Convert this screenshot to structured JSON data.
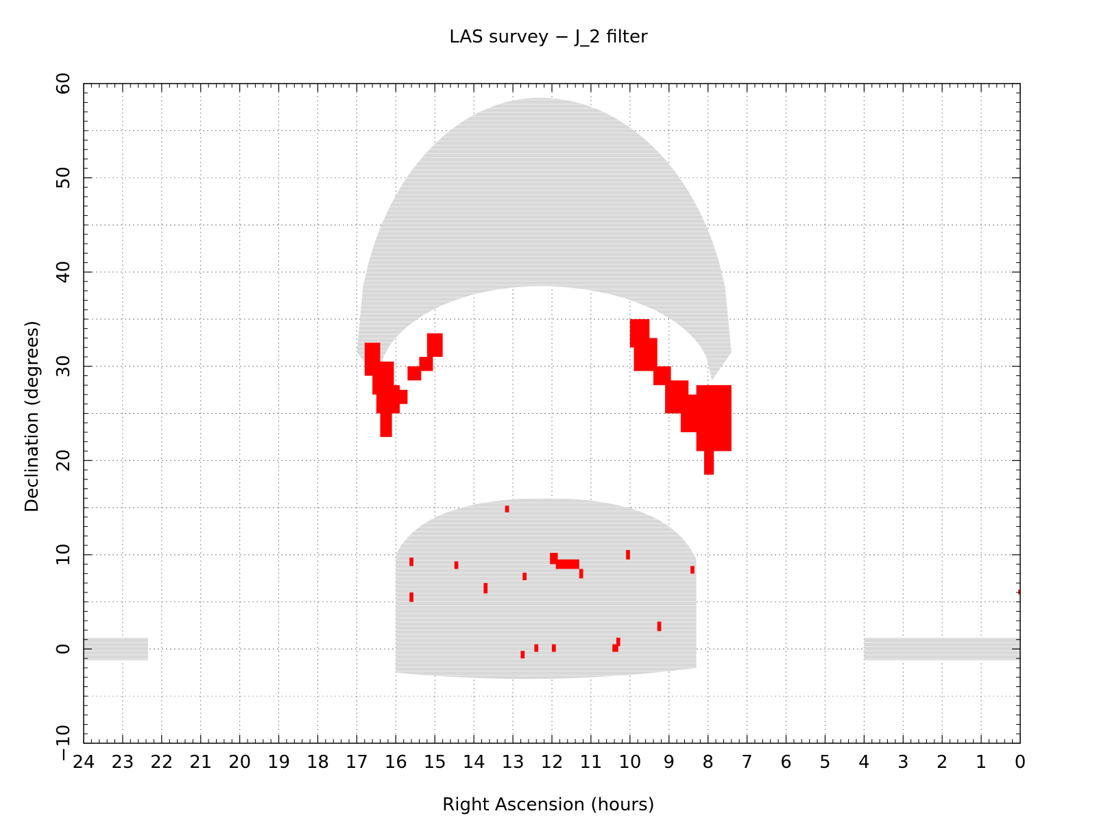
{
  "chart_data": {
    "type": "scatter",
    "title": "LAS survey − J_2 filter",
    "xlabel": "Right Ascension (hours)",
    "ylabel": "Declination (degrees)",
    "xlim": [
      24,
      0
    ],
    "ylim": [
      -10,
      60
    ],
    "x_ticks": [
      "24",
      "23",
      "22",
      "21",
      "20",
      "19",
      "18",
      "17",
      "16",
      "15",
      "14",
      "13",
      "12",
      "11",
      "10",
      "9",
      "8",
      "7",
      "6",
      "5",
      "4",
      "3",
      "2",
      "1",
      "0"
    ],
    "y_ticks": [
      "−10",
      "0",
      "10",
      "20",
      "30",
      "40",
      "50",
      "60"
    ],
    "grid": true,
    "colors": {
      "planned": "#d8d8d8",
      "observed": "#ff0000",
      "grid": "#7a7a7a"
    },
    "series": [
      {
        "role": "planned",
        "regions": [
          {
            "kind": "arc",
            "ra_left": 17.0,
            "ra_right": 7.4,
            "ra_peak": 12.3,
            "dec_outer_peak": 58.5,
            "dec_inner_peak": 38.5,
            "dec_end": 31.5
          },
          {
            "kind": "band",
            "ra_range": [
              16.0,
              8.3
            ],
            "dec_range": [
              -3.5,
              16.0
            ]
          },
          {
            "kind": "strip",
            "ra_range": [
              24.0,
              22.35
            ],
            "dec_range": [
              -1.2,
              1.2
            ]
          },
          {
            "kind": "strip",
            "ra_range": [
              4.0,
              0.0
            ],
            "dec_range": [
              -1.2,
              1.2
            ]
          }
        ]
      },
      {
        "role": "observed",
        "regions": [
          {
            "ra_range": [
              16.8,
              16.4
            ],
            "dec_range": [
              29,
              32.5
            ]
          },
          {
            "ra_range": [
              16.6,
              16.05
            ],
            "dec_range": [
              27,
              30.5
            ]
          },
          {
            "ra_range": [
              16.5,
              15.9
            ],
            "dec_range": [
              25,
              28
            ]
          },
          {
            "ra_range": [
              16.4,
              16.1
            ],
            "dec_range": [
              22.5,
              26
            ]
          },
          {
            "ra_range": [
              16.0,
              15.7
            ],
            "dec_range": [
              26,
              27.5
            ]
          },
          {
            "ra_range": [
              15.7,
              15.35
            ],
            "dec_range": [
              28.5,
              30
            ]
          },
          {
            "ra_range": [
              15.4,
              15.05
            ],
            "dec_range": [
              29.5,
              31
            ]
          },
          {
            "ra_range": [
              15.2,
              14.8
            ],
            "dec_range": [
              31,
              33.5
            ]
          },
          {
            "ra_range": [
              10.0,
              9.5
            ],
            "dec_range": [
              32,
              35
            ]
          },
          {
            "ra_range": [
              9.9,
              9.3
            ],
            "dec_range": [
              29.5,
              33
            ]
          },
          {
            "ra_range": [
              9.4,
              8.95
            ],
            "dec_range": [
              28,
              30
            ]
          },
          {
            "ra_range": [
              9.1,
              8.5
            ],
            "dec_range": [
              25,
              28.5
            ]
          },
          {
            "ra_range": [
              8.7,
              7.5
            ],
            "dec_range": [
              23,
              27
            ]
          },
          {
            "ra_range": [
              8.3,
              7.4
            ],
            "dec_range": [
              21,
              28
            ]
          },
          {
            "ra_range": [
              8.1,
              7.85
            ],
            "dec_range": [
              18.5,
              22
            ]
          },
          {
            "ra_range": [
              13.2,
              13.1
            ],
            "dec_range": [
              14.5,
              15.2
            ]
          },
          {
            "ra_range": [
              15.65,
              15.55
            ],
            "dec_range": [
              8.8,
              9.7
            ]
          },
          {
            "ra_range": [
              14.5,
              14.4
            ],
            "dec_range": [
              8.5,
              9.3
            ]
          },
          {
            "ra_range": [
              12.05,
              11.85
            ],
            "dec_range": [
              9,
              10.2
            ]
          },
          {
            "ra_range": [
              11.9,
              11.3
            ],
            "dec_range": [
              8.5,
              9.5
            ]
          },
          {
            "ra_range": [
              11.3,
              11.2
            ],
            "dec_range": [
              7.5,
              8.5
            ]
          },
          {
            "ra_range": [
              10.1,
              10.0
            ],
            "dec_range": [
              9.5,
              10.5
            ]
          },
          {
            "ra_range": [
              8.45,
              8.35
            ],
            "dec_range": [
              8,
              8.8
            ]
          },
          {
            "ra_range": [
              12.75,
              12.65
            ],
            "dec_range": [
              7.3,
              8.1
            ]
          },
          {
            "ra_range": [
              13.75,
              13.65
            ],
            "dec_range": [
              5.9,
              7.0
            ]
          },
          {
            "ra_range": [
              15.65,
              15.55
            ],
            "dec_range": [
              5.0,
              6.0
            ]
          },
          {
            "ra_range": [
              9.3,
              9.2
            ],
            "dec_range": [
              1.9,
              2.9
            ]
          },
          {
            "ra_range": [
              10.45,
              10.3
            ],
            "dec_range": [
              -0.3,
              0.5
            ]
          },
          {
            "ra_range": [
              10.35,
              10.25
            ],
            "dec_range": [
              0.3,
              1.2
            ]
          },
          {
            "ra_range": [
              12.0,
              11.9
            ],
            "dec_range": [
              -0.3,
              0.5
            ]
          },
          {
            "ra_range": [
              12.45,
              12.35
            ],
            "dec_range": [
              -0.3,
              0.5
            ]
          },
          {
            "ra_range": [
              12.8,
              12.7
            ],
            "dec_range": [
              -1.0,
              -0.2
            ]
          },
          {
            "ra_range": [
              0.05,
              0.0
            ],
            "dec_range": [
              5.8,
              6.3
            ]
          }
        ]
      }
    ]
  }
}
